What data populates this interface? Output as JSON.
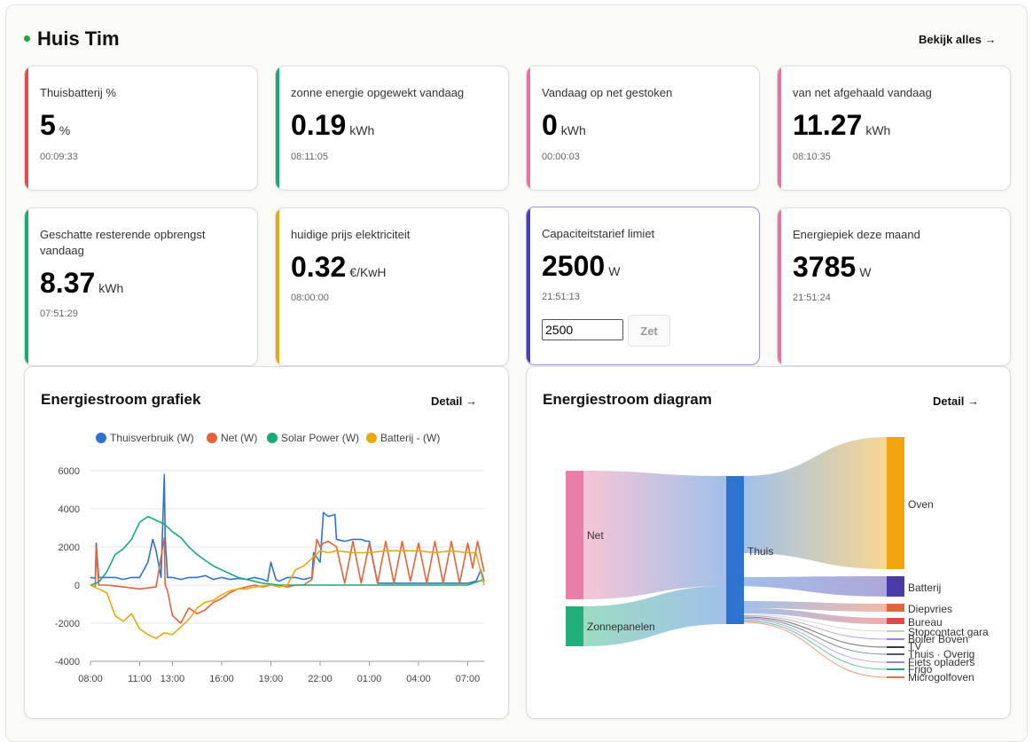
{
  "header": {
    "title": "Huis Tim",
    "view_all": "Bekijk alles →"
  },
  "colors": {
    "red": "#d95050",
    "green": "#1aaa74",
    "pink": "#e573a3",
    "orange": "#e8a80f",
    "purple": "#4a3fb0"
  },
  "cards": [
    {
      "label": "Thuisbatterij %",
      "value": "5",
      "unit": "%",
      "time": "00:09:33"
    },
    {
      "label": "zonne energie opgewekt vandaag",
      "value": "0.19",
      "unit": "kWh",
      "time": "08:11:05"
    },
    {
      "label": "Vandaag op net gestoken",
      "value": "0",
      "unit": "kWh",
      "time": "00:00:03"
    },
    {
      "label": "van net afgehaald vandaag",
      "value": "11.27",
      "unit": "kWh",
      "time": "08:10:35"
    },
    {
      "label": "Geschatte resterende opbrengst vandaag",
      "value": "8.37",
      "unit": "kWh",
      "time": "07:51:29"
    },
    {
      "label": "huidige prijs elektriciteit",
      "value": "0.32",
      "unit": "€/KwH",
      "time": "08:00:00"
    },
    {
      "label": "Capaciteitstarief limiet",
      "value": "2500",
      "unit": "W",
      "time": "21:51:13",
      "input_value": "2500",
      "button": "Zet"
    },
    {
      "label": "Energiepiek deze maand",
      "value": "3785",
      "unit": "W",
      "time": "21:51:24"
    }
  ],
  "panels": {
    "chart": {
      "title": "Energiestroom grafiek",
      "detail": "Detail →"
    },
    "sankey": {
      "title": "Energiestroom diagram",
      "detail": "Detail →"
    }
  },
  "chart_data": {
    "type": "line",
    "title": "Energiestroom grafiek",
    "legend_position": "top",
    "grid": true,
    "x_ticks": [
      "08:00",
      "11:00",
      "13:00",
      "16:00",
      "19:00",
      "22:00",
      "01:00",
      "04:00",
      "07:00"
    ],
    "x_tick_hours": [
      0,
      3,
      5,
      8,
      11,
      14,
      17,
      20,
      23
    ],
    "x_range_hours": [
      0,
      24
    ],
    "y_ticks": [
      "6000",
      "4000",
      "2000",
      "0",
      "-2000",
      "-4000"
    ],
    "ylim": [
      -4000,
      6000
    ],
    "series": [
      {
        "name": "Thuisverbruik (W)",
        "color": "#2f73d0",
        "x": [
          0,
          0.3,
          0.35,
          0.5,
          1,
          1.5,
          2,
          2.5,
          3,
          3.5,
          3.8,
          4,
          4.3,
          4.5,
          4.55,
          4.7,
          5,
          5.5,
          6,
          6.5,
          7,
          7.5,
          8,
          8.5,
          9,
          9.5,
          10,
          10.5,
          10.8,
          11,
          11.3,
          11.5,
          12,
          12.5,
          13,
          13.5,
          13.6,
          14,
          14.2,
          14.5,
          14.9,
          15,
          15.5,
          16,
          16.5,
          16.8,
          17,
          17.5,
          18,
          19,
          20,
          21,
          22,
          23,
          23.5,
          23.8,
          24
        ],
        "y": [
          400,
          350,
          2200,
          400,
          400,
          400,
          300,
          400,
          400,
          1200,
          2400,
          1800,
          400,
          5800,
          2600,
          400,
          400,
          300,
          400,
          400,
          500,
          300,
          400,
          300,
          350,
          300,
          400,
          300,
          200,
          1200,
          300,
          200,
          400,
          400,
          300,
          400,
          1700,
          1200,
          3800,
          3600,
          3700,
          2400,
          2300,
          2400,
          2400,
          2300,
          2300,
          100,
          100,
          100,
          100,
          100,
          100,
          100,
          200,
          800,
          200
        ]
      },
      {
        "name": "Net (W)",
        "color": "#e4633a",
        "x": [
          0,
          0.3,
          0.35,
          0.5,
          1,
          2,
          3,
          4,
          4.5,
          4.55,
          4.7,
          5,
          5.5,
          6,
          6.5,
          7,
          7.5,
          8,
          8.5,
          9,
          9.5,
          10,
          10.5,
          11,
          11.5,
          12,
          12.5,
          13,
          13.5,
          13.8,
          14,
          14.2,
          14.5,
          15,
          15.5,
          16,
          16.5,
          17,
          17.5,
          18,
          18.5,
          19,
          19.5,
          20,
          20.5,
          21,
          21.5,
          22,
          22.5,
          23,
          23.3,
          23.6,
          24
        ],
        "y": [
          0,
          -100,
          2000,
          0,
          0,
          -100,
          -200,
          -100,
          2500,
          0,
          -300,
          -1600,
          -2000,
          -1200,
          -1500,
          -1300,
          -900,
          -700,
          -400,
          -200,
          -100,
          0,
          -100,
          0,
          0,
          -100,
          0,
          0,
          300,
          2400,
          2000,
          2200,
          2300,
          2000,
          100,
          2300,
          100,
          2200,
          100,
          2300,
          100,
          2300,
          200,
          2200,
          100,
          2300,
          100,
          2300,
          100,
          2200,
          900,
          2300,
          700
        ]
      },
      {
        "name": "Solar Power (W)",
        "color": "#1aaa74",
        "x": [
          0,
          0.5,
          1,
          1.5,
          2,
          2.5,
          3,
          3.5,
          4,
          4.5,
          5,
          5.5,
          6,
          6.5,
          7,
          7.5,
          8,
          8.5,
          9,
          9.5,
          10,
          10.5,
          11,
          11.5,
          12,
          13,
          14,
          15,
          16,
          17,
          18,
          19,
          20,
          21,
          22,
          23,
          23.5,
          24
        ],
        "y": [
          0,
          150,
          700,
          1600,
          1900,
          2400,
          3300,
          3600,
          3400,
          3200,
          2800,
          2500,
          2000,
          1600,
          1300,
          1000,
          800,
          600,
          400,
          300,
          200,
          100,
          50,
          0,
          0,
          0,
          0,
          0,
          0,
          0,
          0,
          0,
          0,
          0,
          0,
          0,
          150,
          300
        ]
      },
      {
        "name": "Batterij - (W)",
        "color": "#e8a80f",
        "x": [
          0,
          0.5,
          1,
          1.5,
          2,
          2.5,
          3,
          3.5,
          4,
          4.5,
          5,
          5.5,
          6,
          6.5,
          7,
          7.5,
          8,
          8.5,
          9,
          9.5,
          10,
          10.5,
          11,
          11.5,
          12,
          12.5,
          13,
          13.5,
          14,
          14.5,
          15,
          16,
          17,
          18,
          19,
          20,
          21,
          22,
          23,
          23.5,
          24
        ],
        "y": [
          0,
          -200,
          -400,
          -1600,
          -1900,
          -1500,
          -2300,
          -2600,
          -2800,
          -2500,
          -2600,
          -2200,
          -1800,
          -1200,
          -900,
          -800,
          -500,
          -300,
          -200,
          -200,
          -100,
          -50,
          0,
          -100,
          0,
          800,
          1000,
          1400,
          1800,
          1700,
          1800,
          1700,
          1700,
          1800,
          1800,
          1800,
          1700,
          1800,
          1700,
          1700,
          0
        ]
      }
    ]
  },
  "sankey_data": {
    "type": "sankey",
    "sources": [
      {
        "name": "Net",
        "color": "#e97fa6"
      },
      {
        "name": "Zonnepanelen",
        "color": "#22b07a"
      }
    ],
    "hub": {
      "name": "Thuis",
      "color": "#2f73d0"
    },
    "targets": [
      {
        "name": "Oven",
        "color": "#f0a50e"
      },
      {
        "name": "Batterij",
        "color": "#4a3aa8"
      },
      {
        "name": "Diepvries",
        "color": "#e4633a"
      },
      {
        "name": "Bureau",
        "color": "#e04a4a"
      },
      {
        "name": "Stopcontact gara",
        "color": "#c8c8c8"
      },
      {
        "name": "Boiler Boven",
        "color": "#9b7fd0"
      },
      {
        "name": "TV",
        "color": "#3a3a3a"
      },
      {
        "name": "Thuis · Overig",
        "color": "#4a5a70"
      },
      {
        "name": "Fiets opladers",
        "color": "#a080d0"
      },
      {
        "name": "Frigo",
        "color": "#22a870"
      },
      {
        "name": "Microgolfoven",
        "color": "#e07050"
      }
    ]
  }
}
